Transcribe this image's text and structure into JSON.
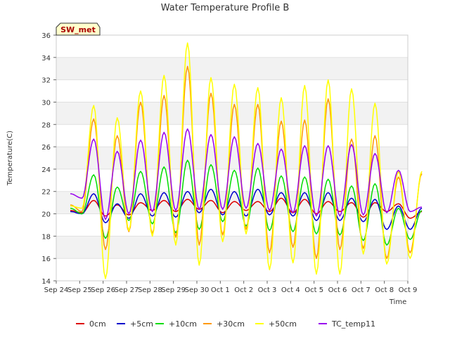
{
  "chart_data": {
    "type": "line",
    "title": "Water Temperature Profile B",
    "xlabel": "Time",
    "ylabel": "Temperature(C)",
    "badge": "SW_met",
    "ylim": [
      14,
      36
    ],
    "yticks": [
      14,
      16,
      18,
      20,
      22,
      24,
      26,
      28,
      30,
      32,
      34,
      36
    ],
    "xlim": [
      "Sep 24",
      "Oct 9"
    ],
    "xticks": [
      "Sep 24",
      "Sep 25",
      "Sep 26",
      "Sep 27",
      "Sep 28",
      "Sep 29",
      "Sep 30",
      "Oct 1",
      "Oct 2",
      "Oct 3",
      "Oct 4",
      "Oct 5",
      "Oct 6",
      "Oct 7",
      "Oct 8",
      "Oct 9"
    ],
    "grid": "horizontal bands",
    "legend_position": "bottom",
    "x_start_day": 24.6,
    "x_step_days": 0.5,
    "series": [
      {
        "name": "0cm",
        "color": "#dd0000",
        "values": [
          20.3,
          20.1,
          21.2,
          19.8,
          20.8,
          19.9,
          21.0,
          20.3,
          21.2,
          20.2,
          21.3,
          20.4,
          21.2,
          20.1,
          21.1,
          20.3,
          21.1,
          20.2,
          21.4,
          20.1,
          21.3,
          20.0,
          21.1,
          20.2,
          21.0,
          19.7,
          21.0,
          20.2,
          20.9,
          19.6,
          20.2
        ]
      },
      {
        "name": "+5cm",
        "color": "#0000cc",
        "values": [
          20.2,
          20.0,
          21.8,
          19.2,
          20.9,
          19.6,
          21.8,
          19.8,
          21.9,
          19.7,
          22.0,
          20.1,
          22.2,
          19.9,
          22.0,
          19.8,
          22.2,
          19.9,
          21.9,
          19.8,
          21.9,
          19.4,
          21.9,
          19.4,
          21.4,
          19.3,
          21.3,
          18.6,
          20.7,
          18.6,
          20.5
        ]
      },
      {
        "name": "+10cm",
        "color": "#00dd00",
        "values": [
          20.5,
          20.0,
          23.5,
          17.8,
          22.4,
          19.4,
          23.8,
          19.1,
          24.2,
          18.3,
          24.8,
          18.6,
          24.4,
          19.3,
          23.9,
          18.9,
          24.1,
          18.5,
          23.4,
          18.4,
          23.3,
          18.2,
          23.1,
          18.1,
          22.5,
          17.6,
          22.7,
          17.2,
          20.5,
          17.7,
          20.3
        ]
      },
      {
        "name": "+30cm",
        "color": "#ff9900",
        "values": [
          20.8,
          20.2,
          28.5,
          16.8,
          27.0,
          18.4,
          30.0,
          18.2,
          30.6,
          17.9,
          33.2,
          17.2,
          30.8,
          18.1,
          29.8,
          18.6,
          29.8,
          16.5,
          28.3,
          17.0,
          28.4,
          16.0,
          30.3,
          16.8,
          26.7,
          16.9,
          27.0,
          16.0,
          23.3,
          16.5,
          23.6
        ]
      },
      {
        "name": "+50cm",
        "color": "#ffff00",
        "values": [
          20.7,
          20.5,
          29.7,
          14.2,
          28.6,
          18.5,
          31.0,
          18.0,
          32.4,
          17.2,
          35.3,
          15.4,
          32.2,
          17.5,
          31.6,
          18.2,
          31.3,
          15.0,
          30.4,
          15.6,
          31.5,
          14.6,
          32.0,
          14.6,
          31.2,
          16.4,
          29.9,
          15.5,
          23.8,
          16.0,
          23.8
        ]
      },
      {
        "name": "TC_temp11",
        "color": "#9900ee",
        "values": [
          21.8,
          21.4,
          26.7,
          19.5,
          25.6,
          20.0,
          26.6,
          20.2,
          27.3,
          20.3,
          27.6,
          20.4,
          27.1,
          20.4,
          26.9,
          20.5,
          26.3,
          20.3,
          25.8,
          20.1,
          26.1,
          19.8,
          26.1,
          19.8,
          26.2,
          19.9,
          25.4,
          20.1,
          23.9,
          20.2,
          20.6
        ]
      }
    ]
  }
}
